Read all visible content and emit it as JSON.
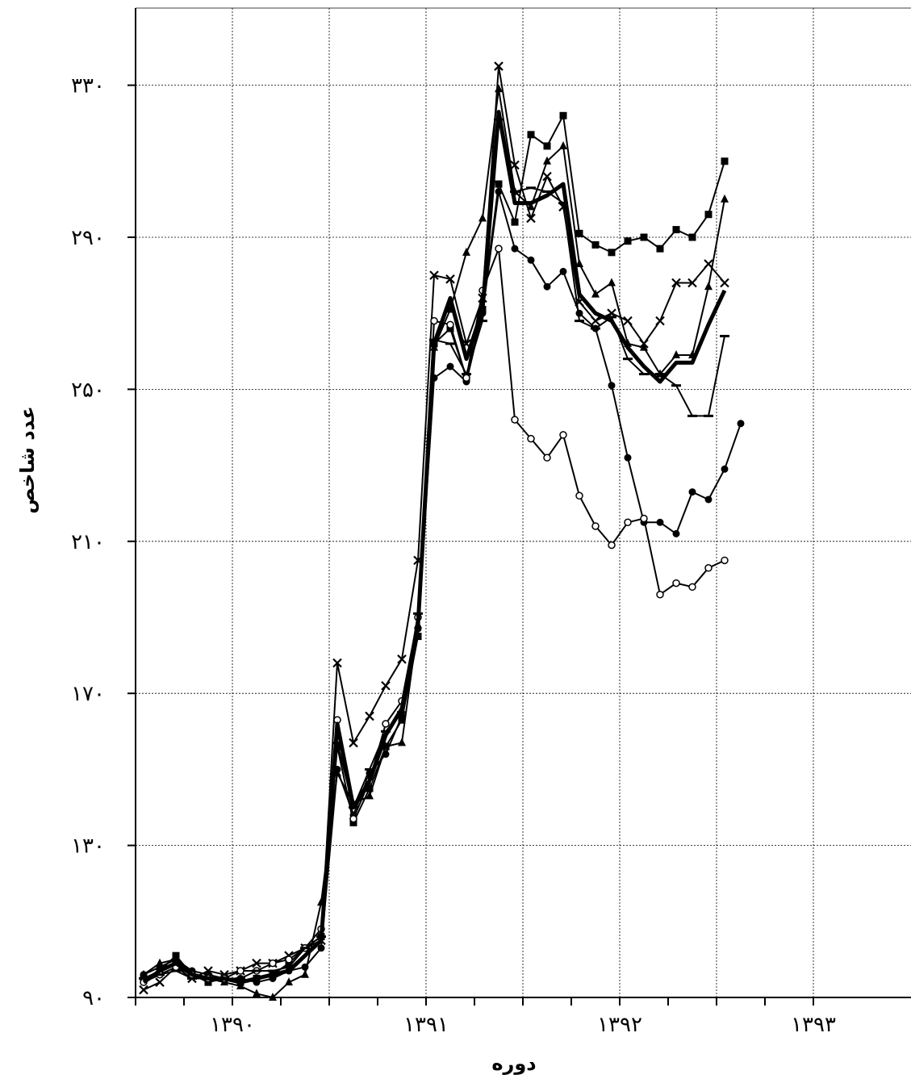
{
  "chart_data": {
    "type": "line",
    "title": "",
    "xlabel": "دوره",
    "ylabel": "عدد شاخص",
    "xlim": [
      0,
      84
    ],
    "ylim": [
      90,
      350
    ],
    "y_ticks": [
      90,
      130,
      170,
      210,
      250,
      290,
      330
    ],
    "y_tick_labels": [
      "۹۰",
      "۱۳۰",
      "۱۷۰",
      "۲۱۰",
      "۲۵۰",
      "۲۹۰",
      "۳۳۰"
    ],
    "x_gridlines": [
      0,
      12,
      24,
      36,
      48,
      60,
      72,
      84
    ],
    "x_tick_labels": [
      {
        "x": 12,
        "label": "۱۳۹۰"
      },
      {
        "x": 36,
        "label": "۱۳۹۱"
      },
      {
        "x": 60,
        "label": "۱۳۹۲"
      },
      {
        "x": 84,
        "label": "۱۳۹۳"
      }
    ],
    "grid": true,
    "series": [
      {
        "marker": "square",
        "stroke_width": 2,
        "values": [
          [
            1,
            95
          ],
          [
            3,
            97
          ],
          [
            5,
            101
          ],
          [
            7,
            96
          ],
          [
            9,
            94
          ],
          [
            11,
            95
          ],
          [
            13,
            94
          ],
          [
            15,
            95
          ],
          [
            17,
            96
          ],
          [
            19,
            99
          ],
          [
            21,
            103
          ],
          [
            23,
            106
          ],
          [
            25,
            156
          ],
          [
            27,
            136
          ],
          [
            29,
            145
          ],
          [
            31,
            156
          ],
          [
            33,
            163
          ],
          [
            35,
            185
          ],
          [
            37,
            262
          ],
          [
            39,
            266
          ],
          [
            41,
            253
          ],
          [
            43,
            271
          ],
          [
            45,
            304
          ],
          [
            47,
            294
          ],
          [
            49,
            317
          ],
          [
            51,
            314
          ],
          [
            53,
            322
          ],
          [
            55,
            291
          ],
          [
            57,
            288
          ],
          [
            59,
            286
          ],
          [
            61,
            289
          ],
          [
            63,
            290
          ],
          [
            65,
            287
          ],
          [
            67,
            292
          ],
          [
            69,
            290
          ],
          [
            71,
            296
          ],
          [
            73,
            310
          ]
        ]
      },
      {
        "marker": "triangle",
        "stroke_width": 2,
        "values": [
          [
            1,
            96
          ],
          [
            3,
            99
          ],
          [
            5,
            100
          ],
          [
            7,
            96
          ],
          [
            9,
            95
          ],
          [
            11,
            94
          ],
          [
            13,
            93
          ],
          [
            15,
            91
          ],
          [
            17,
            90
          ],
          [
            19,
            94
          ],
          [
            21,
            96
          ],
          [
            23,
            115
          ],
          [
            25,
            149
          ],
          [
            27,
            141
          ],
          [
            29,
            143
          ],
          [
            31,
            156
          ],
          [
            33,
            157
          ],
          [
            35,
            188
          ],
          [
            37,
            261
          ],
          [
            39,
            271
          ],
          [
            41,
            286
          ],
          [
            43,
            295
          ],
          [
            45,
            329
          ],
          [
            47,
            302
          ],
          [
            49,
            298
          ],
          [
            51,
            310
          ],
          [
            53,
            314
          ],
          [
            55,
            283
          ],
          [
            57,
            275
          ],
          [
            59,
            278
          ],
          [
            61,
            262
          ],
          [
            63,
            261
          ],
          [
            65,
            254
          ],
          [
            67,
            259
          ],
          [
            69,
            259
          ],
          [
            71,
            277
          ],
          [
            73,
            300
          ]
        ]
      },
      {
        "marker": "filled-circle",
        "stroke_width": 2,
        "values": [
          [
            1,
            96
          ],
          [
            3,
            98
          ],
          [
            5,
            100
          ],
          [
            7,
            97
          ],
          [
            9,
            96
          ],
          [
            11,
            95
          ],
          [
            13,
            95
          ],
          [
            15,
            94
          ],
          [
            17,
            95
          ],
          [
            19,
            97
          ],
          [
            21,
            98
          ],
          [
            23,
            103
          ],
          [
            25,
            150
          ],
          [
            27,
            138
          ],
          [
            29,
            149
          ],
          [
            31,
            154
          ],
          [
            33,
            164
          ],
          [
            35,
            187
          ],
          [
            37,
            253
          ],
          [
            39,
            256
          ],
          [
            41,
            252
          ],
          [
            43,
            270
          ],
          [
            45,
            302
          ],
          [
            47,
            287
          ],
          [
            49,
            284
          ],
          [
            51,
            277
          ],
          [
            53,
            281
          ],
          [
            55,
            270
          ],
          [
            57,
            266
          ],
          [
            59,
            251
          ],
          [
            61,
            232
          ],
          [
            63,
            215
          ],
          [
            65,
            215
          ],
          [
            67,
            212
          ],
          [
            69,
            223
          ],
          [
            71,
            221
          ],
          [
            73,
            229
          ],
          [
            75,
            241
          ]
        ]
      },
      {
        "marker": "cross",
        "stroke_width": 2,
        "values": [
          [
            1,
            92
          ],
          [
            3,
            94
          ],
          [
            5,
            98
          ],
          [
            7,
            95
          ],
          [
            9,
            97
          ],
          [
            11,
            96
          ],
          [
            13,
            97
          ],
          [
            15,
            99
          ],
          [
            17,
            99
          ],
          [
            19,
            101
          ],
          [
            21,
            103
          ],
          [
            23,
            105
          ],
          [
            25,
            178
          ],
          [
            27,
            157
          ],
          [
            29,
            164
          ],
          [
            31,
            172
          ],
          [
            33,
            179
          ],
          [
            35,
            205
          ],
          [
            37,
            280
          ],
          [
            39,
            279
          ],
          [
            41,
            262
          ],
          [
            43,
            274
          ],
          [
            45,
            335
          ],
          [
            47,
            309
          ],
          [
            49,
            295
          ],
          [
            51,
            306
          ],
          [
            53,
            298
          ],
          [
            55,
            273
          ],
          [
            57,
            268
          ],
          [
            59,
            270
          ],
          [
            61,
            268
          ],
          [
            63,
            262
          ],
          [
            65,
            268
          ],
          [
            67,
            278
          ],
          [
            69,
            278
          ],
          [
            71,
            283
          ],
          [
            73,
            278
          ]
        ]
      },
      {
        "marker": "open-circle",
        "stroke_width": 2,
        "values": [
          [
            1,
            94
          ],
          [
            3,
            96
          ],
          [
            5,
            98
          ],
          [
            7,
            96
          ],
          [
            9,
            95
          ],
          [
            11,
            95
          ],
          [
            13,
            97
          ],
          [
            15,
            97
          ],
          [
            17,
            99
          ],
          [
            19,
            100
          ],
          [
            21,
            103
          ],
          [
            23,
            108
          ],
          [
            25,
            163
          ],
          [
            27,
            137
          ],
          [
            29,
            147
          ],
          [
            31,
            162
          ],
          [
            33,
            168
          ],
          [
            35,
            190
          ],
          [
            37,
            268
          ],
          [
            39,
            267
          ],
          [
            41,
            253
          ],
          [
            43,
            276
          ],
          [
            45,
            287
          ],
          [
            47,
            242
          ],
          [
            49,
            237
          ],
          [
            51,
            232
          ],
          [
            53,
            238
          ],
          [
            55,
            222
          ],
          [
            57,
            214
          ],
          [
            59,
            209
          ],
          [
            61,
            215
          ],
          [
            63,
            216
          ],
          [
            65,
            196
          ],
          [
            67,
            199
          ],
          [
            69,
            198
          ],
          [
            71,
            203
          ],
          [
            73,
            205
          ]
        ]
      },
      {
        "marker": "dash",
        "stroke_width": 2,
        "values": [
          [
            1,
            95
          ],
          [
            3,
            96
          ],
          [
            5,
            97
          ],
          [
            7,
            95
          ],
          [
            9,
            95
          ],
          [
            11,
            95
          ],
          [
            13,
            95
          ],
          [
            15,
            97
          ],
          [
            17,
            97
          ],
          [
            19,
            98
          ],
          [
            21,
            103
          ],
          [
            23,
            106
          ],
          [
            25,
            157
          ],
          [
            27,
            140
          ],
          [
            29,
            150
          ],
          [
            31,
            160
          ],
          [
            33,
            165
          ],
          [
            35,
            191
          ],
          [
            37,
            263
          ],
          [
            39,
            262
          ],
          [
            41,
            254
          ],
          [
            43,
            268
          ],
          [
            45,
            321
          ],
          [
            47,
            302
          ],
          [
            49,
            303
          ],
          [
            51,
            302
          ],
          [
            53,
            299
          ],
          [
            55,
            268
          ],
          [
            57,
            266
          ],
          [
            59,
            269
          ],
          [
            61,
            258
          ],
          [
            63,
            254
          ],
          [
            65,
            254
          ],
          [
            67,
            251
          ],
          [
            69,
            243
          ],
          [
            71,
            243
          ],
          [
            73,
            264
          ]
        ]
      },
      {
        "marker": "none",
        "stroke_width": 5,
        "values": [
          [
            1,
            94
          ],
          [
            3,
            97
          ],
          [
            5,
            99
          ],
          [
            7,
            96
          ],
          [
            9,
            95
          ],
          [
            11,
            95
          ],
          [
            13,
            94
          ],
          [
            15,
            95
          ],
          [
            17,
            96
          ],
          [
            19,
            97
          ],
          [
            21,
            101
          ],
          [
            23,
            105
          ],
          [
            25,
            162
          ],
          [
            27,
            140
          ],
          [
            29,
            147
          ],
          [
            31,
            159
          ],
          [
            33,
            166
          ],
          [
            35,
            188
          ],
          [
            37,
            262
          ],
          [
            39,
            274
          ],
          [
            41,
            258
          ],
          [
            43,
            271
          ],
          [
            45,
            323
          ],
          [
            47,
            299
          ],
          [
            49,
            299
          ],
          [
            51,
            301
          ],
          [
            53,
            304
          ],
          [
            55,
            275
          ],
          [
            57,
            270
          ],
          [
            59,
            268
          ],
          [
            61,
            261
          ],
          [
            63,
            256
          ],
          [
            65,
            252
          ],
          [
            67,
            257
          ],
          [
            69,
            257
          ],
          [
            71,
            267
          ],
          [
            73,
            276
          ]
        ]
      }
    ]
  }
}
